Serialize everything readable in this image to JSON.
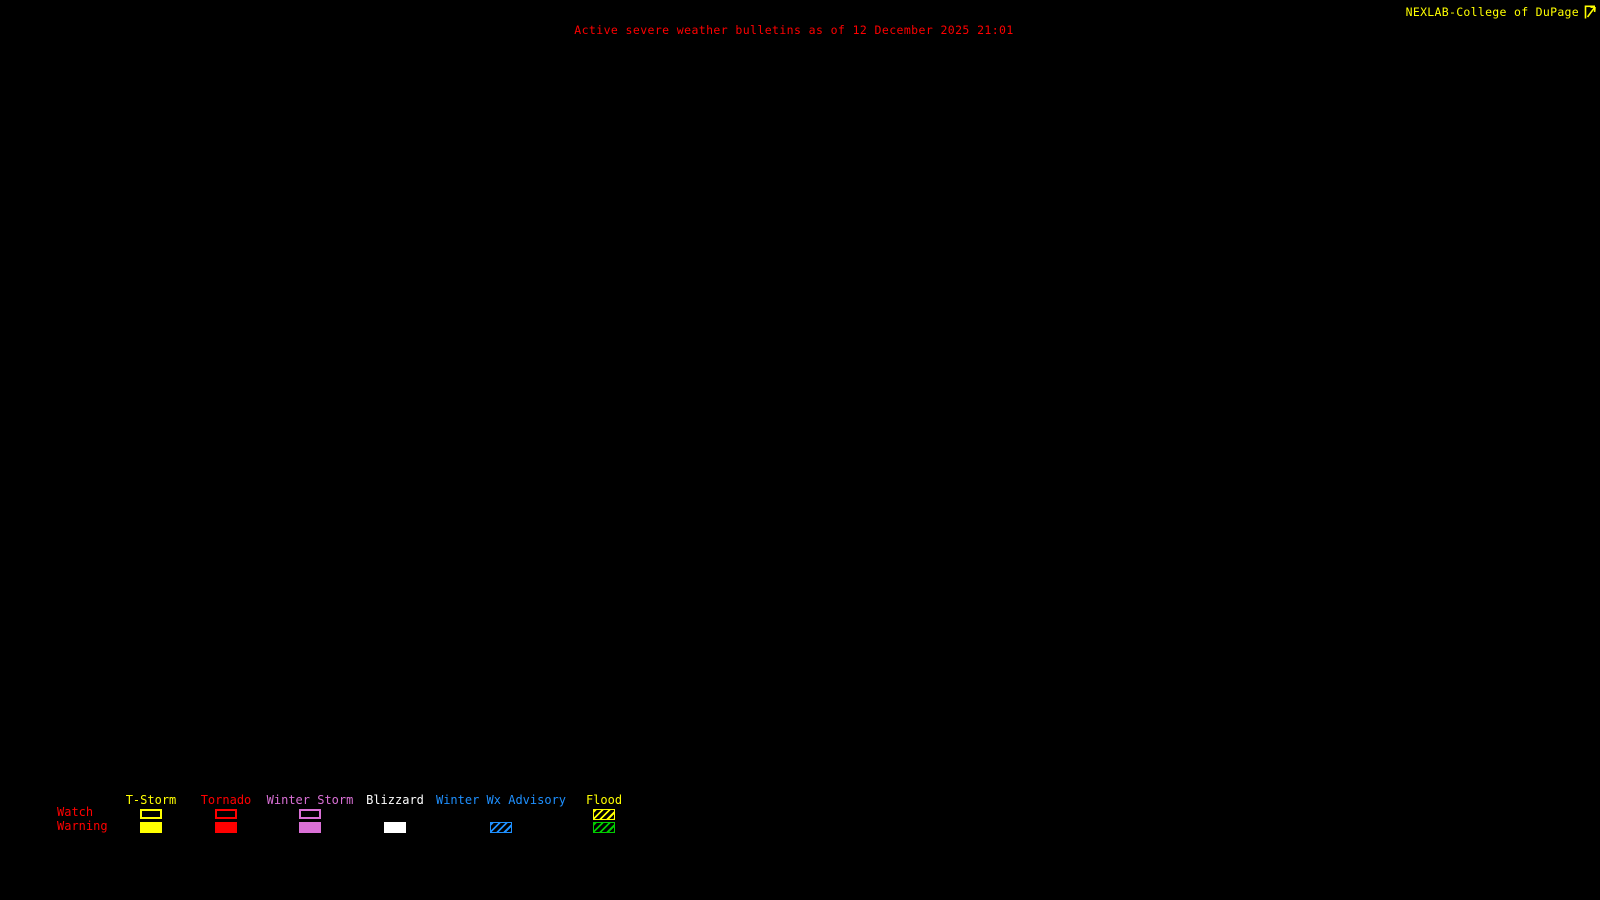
{
  "title": {
    "text": "Active severe weather bulletins as of 12 December 2025 21:01",
    "color": "#FF0000"
  },
  "header": {
    "brand": "NEXLAB-College of DuPage",
    "brand_color": "#FFFF00",
    "logo_icon": "nexlab-logo-icon"
  },
  "map": {
    "background": "#000000"
  },
  "legend": {
    "row_labels": [
      {
        "label": "Watch",
        "color": "#FF0000"
      },
      {
        "label": "Warning",
        "color": "#FF0000"
      }
    ],
    "columns": [
      {
        "label": "T-Storm",
        "label_color": "#FFFF00",
        "watch": {
          "style": "outline",
          "color": "#FFFF00"
        },
        "warning": {
          "style": "solid",
          "color": "#FFFF00"
        }
      },
      {
        "label": "Tornado",
        "label_color": "#FF0000",
        "watch": {
          "style": "outline",
          "color": "#FF0000"
        },
        "warning": {
          "style": "solid",
          "color": "#FF0000"
        }
      },
      {
        "label": "Winter Storm",
        "label_color": "#DA70D6",
        "watch": {
          "style": "outline",
          "color": "#DA70D6"
        },
        "warning": {
          "style": "solid",
          "color": "#DA70D6"
        }
      },
      {
        "label": "Blizzard",
        "label_color": "#FFFFFF",
        "watch": {
          "style": "none"
        },
        "warning": {
          "style": "solid",
          "color": "#FFFFFF"
        }
      },
      {
        "label": "Winter Wx Advisory",
        "label_color": "#1E90FF",
        "watch": {
          "style": "none"
        },
        "warning": {
          "style": "hatched",
          "color": "#1E90FF"
        }
      },
      {
        "label": "Flood",
        "label_color": "#FFFF00",
        "watch": {
          "style": "hatched",
          "color": "#FFFF00"
        },
        "warning": {
          "style": "hatched",
          "color": "#00CC00"
        }
      }
    ]
  }
}
